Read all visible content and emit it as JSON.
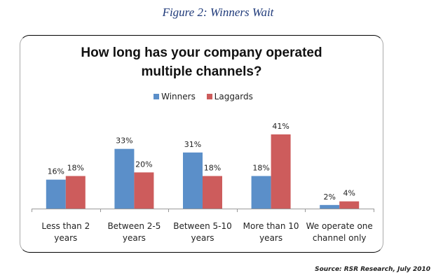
{
  "figure_title": "Figure 2: Winners Wait",
  "source": "Source: RSR Research, July 2010",
  "chart_data": {
    "type": "bar",
    "title": "How long has your company operated multiple channels?",
    "title_lines": [
      "How long has your company operated",
      "multiple channels?"
    ],
    "categories": [
      "Less than 2 years",
      "Between 2-5 years",
      "Between 5-10 years",
      "More than 10 years",
      "We operate one channel only"
    ],
    "category_lines": [
      [
        "Less than 2",
        "years"
      ],
      [
        "Between 2-5",
        "years"
      ],
      [
        "Between 5-10",
        "years"
      ],
      [
        "More than 10",
        "years"
      ],
      [
        "We operate one",
        "channel only"
      ]
    ],
    "series": [
      {
        "name": "Winners",
        "color": "#5b8fc9",
        "values": [
          16,
          33,
          31,
          18,
          2
        ],
        "labels": [
          "16%",
          "33%",
          "31%",
          "18%",
          "2%"
        ]
      },
      {
        "name": "Laggards",
        "color": "#cd5c5c",
        "values": [
          18,
          20,
          18,
          41,
          4
        ],
        "labels": [
          "18%",
          "20%",
          "18%",
          "41%",
          "4%"
        ]
      }
    ],
    "xlabel": "",
    "ylabel": "",
    "ylim": [
      0,
      45
    ],
    "grid": false,
    "legend_position": "top-center"
  }
}
